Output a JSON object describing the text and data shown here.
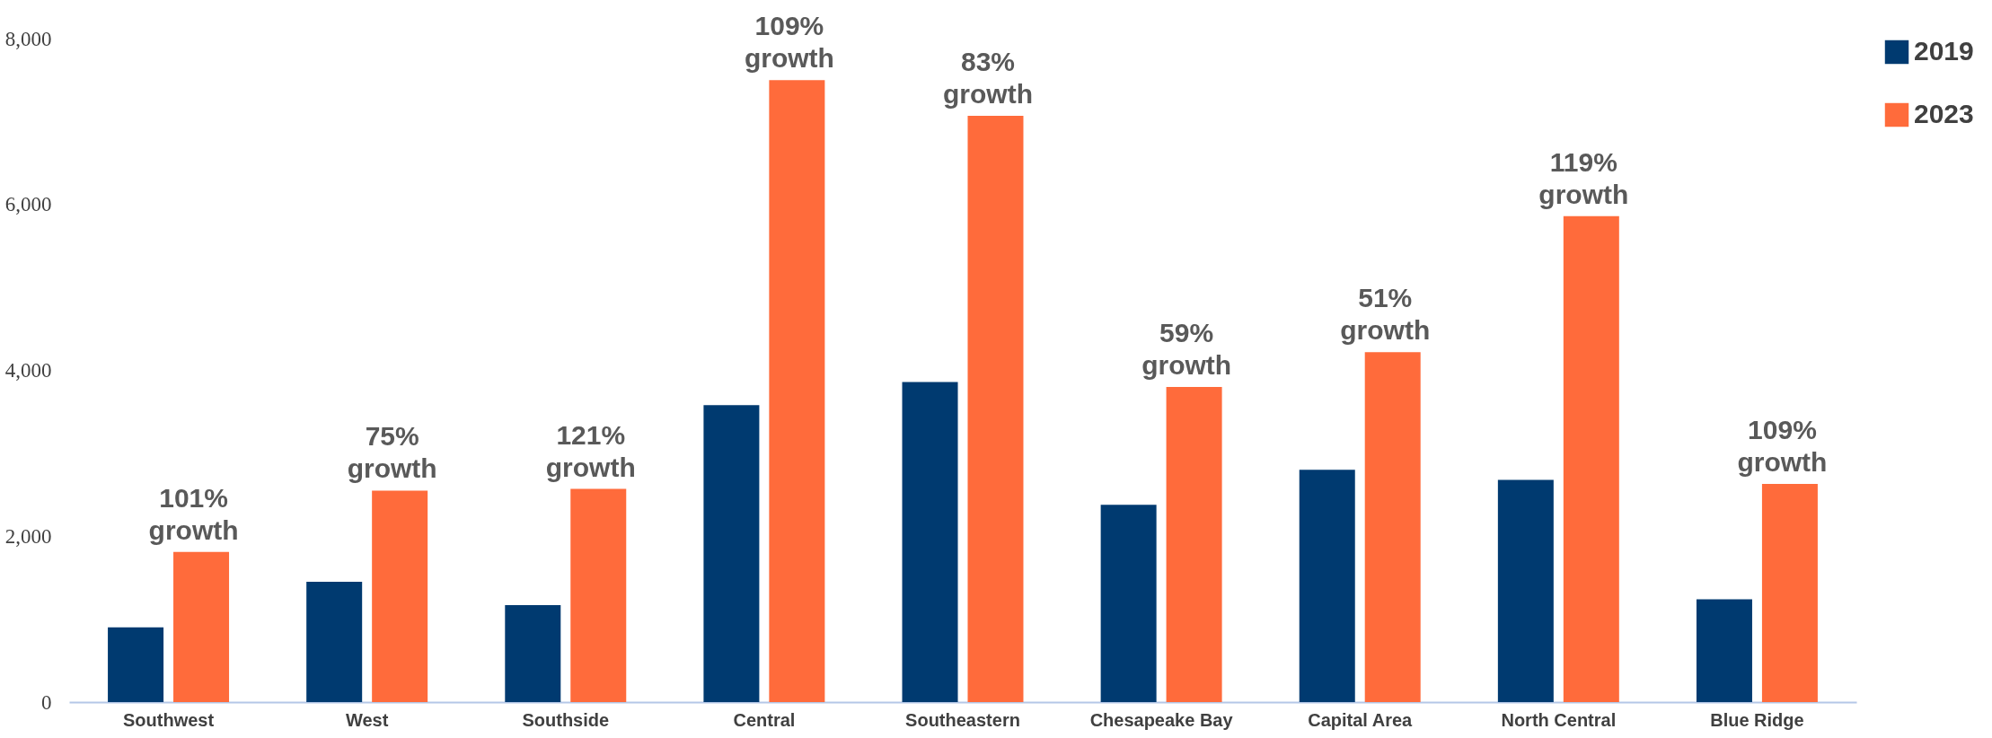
{
  "chart_data": {
    "type": "bar",
    "categories": [
      "Southwest",
      "West",
      "Southside",
      "Central",
      "Southeastern",
      "Chesapeake Bay",
      "Capital Area",
      "North Central",
      "Blue Ridge"
    ],
    "series": [
      {
        "name": "2019",
        "color": "#003a70",
        "values": [
          900,
          1450,
          1170,
          3580,
          3860,
          2380,
          2800,
          2680,
          1240
        ]
      },
      {
        "name": "2023",
        "color": "#ff6b3b",
        "values": [
          1810,
          2550,
          2570,
          7500,
          7070,
          3800,
          4220,
          5860,
          2630
        ]
      }
    ],
    "ylim": [
      0,
      8000
    ],
    "yticks": [
      {
        "value": 0,
        "label": "0"
      },
      {
        "value": 2000,
        "label": "2,000"
      },
      {
        "value": 4000,
        "label": "4,000"
      },
      {
        "value": 6000,
        "label": "6,000"
      },
      {
        "value": 8000,
        "label": "8,000"
      }
    ],
    "grid": false,
    "legend": "top right",
    "annotations": [
      "101% growth",
      "75% growth",
      "121% growth",
      "109% growth",
      "83% growth",
      "59% growth",
      "51% growth",
      "119% growth",
      "109% growth"
    ]
  }
}
